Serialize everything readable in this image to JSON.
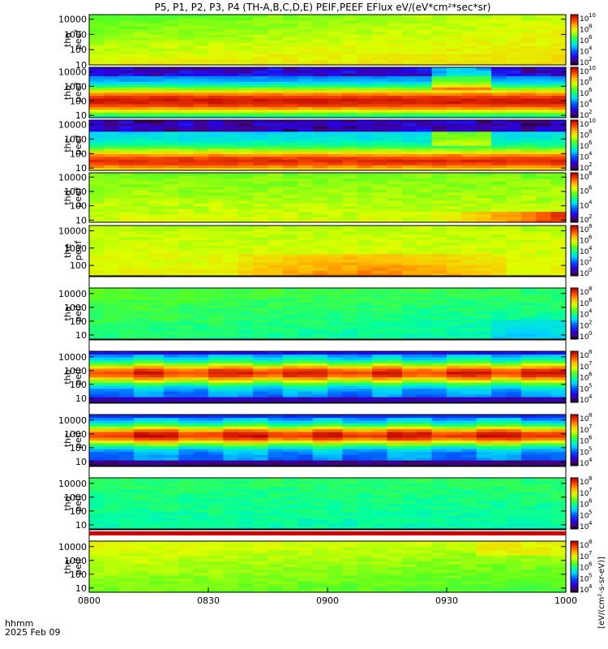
{
  "chart_data": {
    "type": "heatmap",
    "title": "P5, P1, P2, P3, P4 (TH-A,B,C,D,E) PEIF,PEEF EFlux eV/(eV*cm²*sec*sr)",
    "x_ticks": [
      "0800",
      "0830",
      "0900",
      "0930",
      "1000"
    ],
    "x_label_line1": "hhmm",
    "x_label_line2": "2025 Feb 09",
    "colorbar_label": "[eV/(cm²-s-sr-eV)]",
    "panels": [
      {
        "label1": "tha",
        "label2": "peef",
        "yticks": [
          "10",
          "100",
          "1000",
          "10000"
        ],
        "ylog": [
          10,
          20000
        ],
        "cbar": [
          "10",
          "10",
          "10",
          "10",
          "10"
        ],
        "cbar_exp": [
          "2",
          "4",
          "6",
          "8",
          "10"
        ],
        "pattern": "a_peef"
      },
      {
        "label1": "thb",
        "label2": "peef",
        "yticks": [
          "10",
          "100",
          "1000",
          "10000"
        ],
        "ylog": [
          7,
          20000
        ],
        "cbar": [
          "10",
          "10",
          "10",
          "10",
          "10"
        ],
        "cbar_exp": [
          "2",
          "4",
          "6",
          "8",
          "10"
        ],
        "pattern": "b_peef"
      },
      {
        "label1": "thc",
        "label2": "peef",
        "yticks": [
          "10",
          "100",
          "1000",
          "10000"
        ],
        "ylog": [
          7,
          20000
        ],
        "cbar": [
          "10",
          "10",
          "10",
          "10",
          "10"
        ],
        "cbar_exp": [
          "2",
          "4",
          "6",
          "8",
          "10"
        ],
        "pattern": "c_peef"
      },
      {
        "label1": "thd",
        "label2": "peef",
        "yticks": [
          "10",
          "100",
          "1000",
          "10000"
        ],
        "ylog": [
          7,
          20000
        ],
        "cbar": [
          "10",
          "10",
          "10",
          "10"
        ],
        "cbar_exp": [
          "2",
          "4",
          "6",
          "8"
        ],
        "pattern": "d_peef"
      },
      {
        "label1": "the",
        "label2": "peef",
        "yticks": [
          "100",
          "1000",
          "10000"
        ],
        "ylog": [
          25,
          20000
        ],
        "cbar": [
          "10",
          "10",
          "10",
          "10",
          "10"
        ],
        "cbar_exp": [
          "0",
          "2",
          "4",
          "6",
          "8"
        ],
        "pattern": "e_peef"
      },
      {
        "label1": "tha",
        "label2": "peif",
        "yticks": [
          "10",
          "100",
          "1000",
          "10000"
        ],
        "ylog": [
          5,
          25000
        ],
        "cbar": [
          "10",
          "10",
          "10",
          "10",
          "10"
        ],
        "cbar_exp": [
          "0",
          "2",
          "4",
          "6",
          "8"
        ],
        "pattern": "a_peif"
      },
      {
        "label1": "thb",
        "label2": "peif",
        "yticks": [
          "10",
          "100",
          "1000",
          "10000"
        ],
        "ylog": [
          5,
          25000
        ],
        "cbar": [
          "10",
          "10",
          "10",
          "10",
          "10"
        ],
        "cbar_exp": [
          "4",
          "5",
          "6",
          "7",
          "8"
        ],
        "pattern": "b_peif"
      },
      {
        "label1": "thc",
        "label2": "peif",
        "yticks": [
          "10",
          "100",
          "1000",
          "10000"
        ],
        "ylog": [
          5,
          25000
        ],
        "cbar": [
          "10",
          "10",
          "10",
          "10",
          "10"
        ],
        "cbar_exp": [
          "4",
          "5",
          "6",
          "7",
          "8"
        ],
        "pattern": "c_peif"
      },
      {
        "label1": "thd",
        "label2": "peif",
        "yticks": [
          "10",
          "100",
          "1000",
          "10000"
        ],
        "ylog": [
          5,
          25000
        ],
        "cbar": [
          "10",
          "10",
          "10",
          "10",
          "10"
        ],
        "cbar_exp": [
          "4",
          "5",
          "6",
          "7",
          "8"
        ],
        "pattern": "d_peif"
      },
      {
        "label1": "the",
        "label2": "peif",
        "yticks": [
          "10",
          "100",
          "1000",
          "10000"
        ],
        "ylog": [
          5,
          25000
        ],
        "cbar": [
          "10",
          "10",
          "10",
          "10",
          "10"
        ],
        "cbar_exp": [
          "4",
          "5",
          "6",
          "7",
          "8"
        ],
        "pattern": "e_peif"
      }
    ]
  }
}
